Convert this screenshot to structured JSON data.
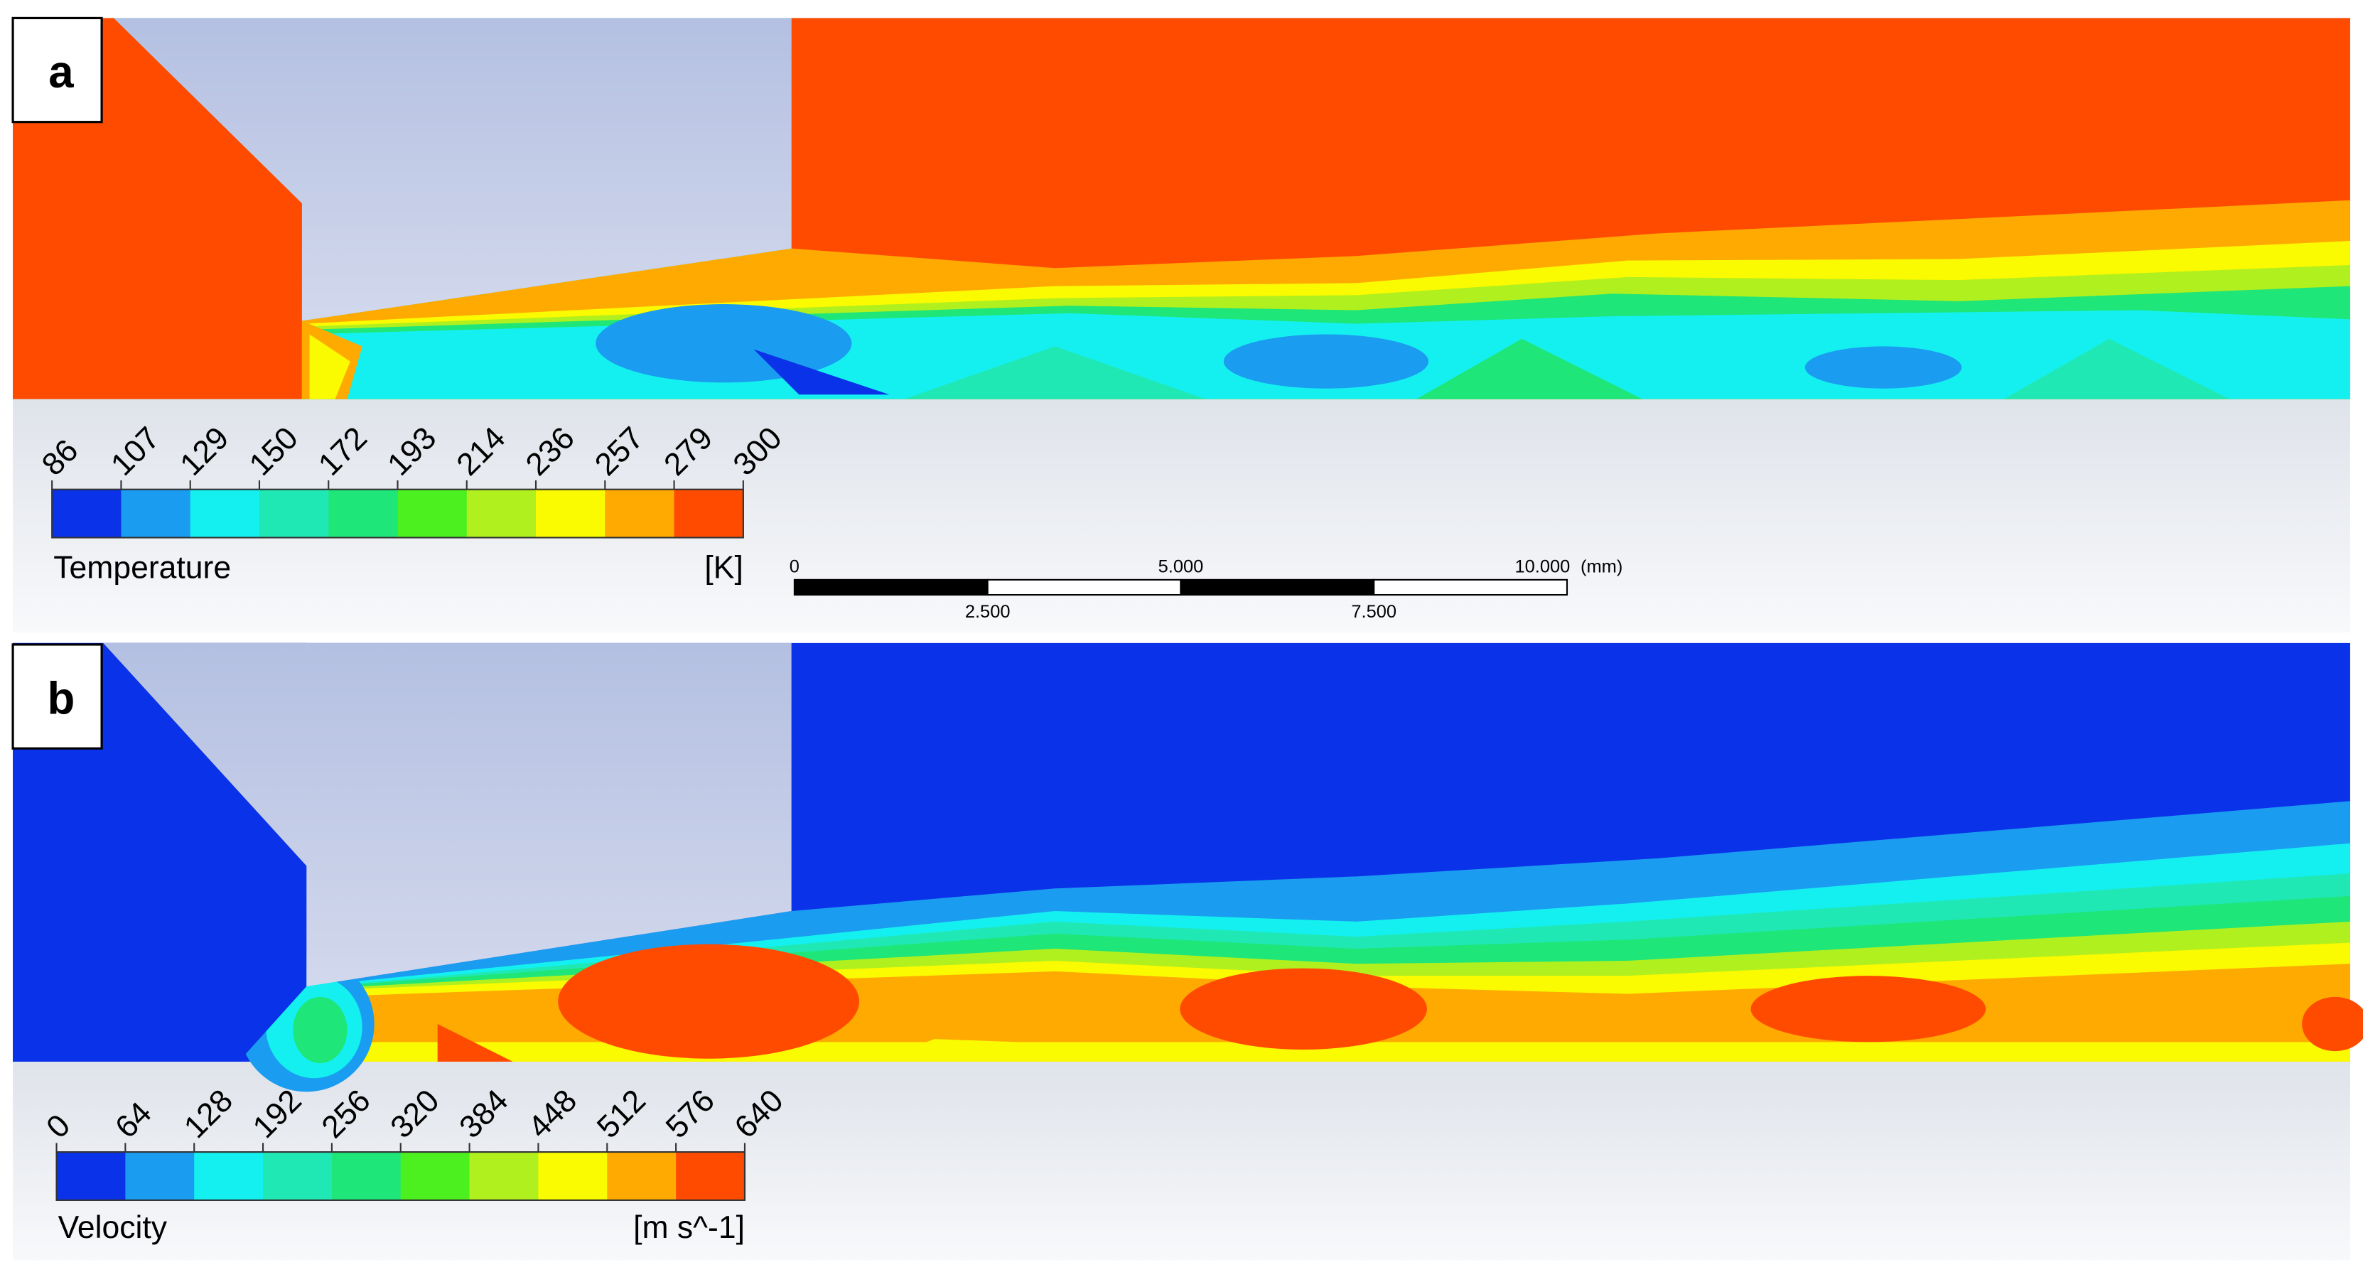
{
  "panels": [
    {
      "label": "a",
      "legend": {
        "ticks": [
          86,
          107,
          129,
          150,
          172,
          193,
          214,
          236,
          257,
          279,
          300
        ],
        "title": "Temperature",
        "unit": "[K]"
      }
    },
    {
      "label": "b",
      "legend": {
        "ticks": [
          0,
          64,
          128,
          192,
          256,
          320,
          384,
          448,
          512,
          576,
          640
        ],
        "title": "Velocity",
        "unit": "[m s^-1]"
      }
    }
  ],
  "scale_bar": {
    "labels": [
      "0",
      "5.000",
      "10.000",
      "(mm)"
    ],
    "sublabels": [
      "2.500",
      "7.500"
    ]
  }
}
